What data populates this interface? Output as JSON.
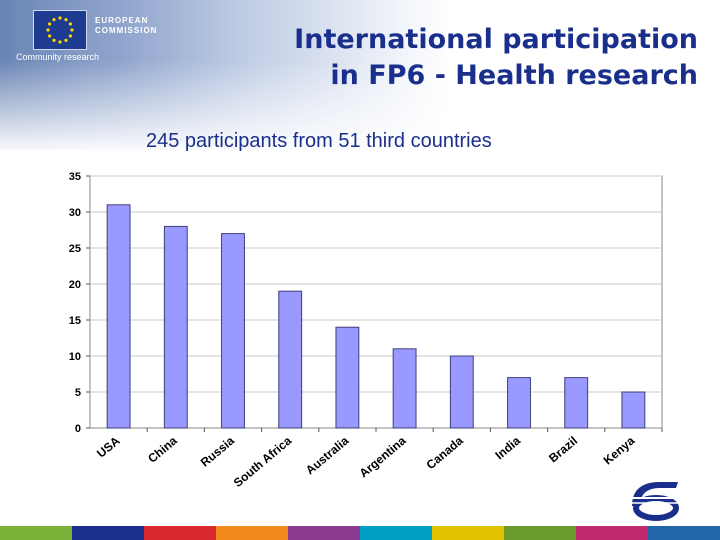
{
  "header": {
    "logo_line1": "EUROPEAN",
    "logo_line2": "COMMISSION",
    "community": "Community research",
    "title_line1": "International participation",
    "title_line2": "in FP6 - Health research"
  },
  "subtitle": "245 participants from 51 third countries",
  "colors": {
    "title": "#1a2f8c",
    "bar_fill": "#9999ff",
    "bar_stroke": "#3f3f7a",
    "footer": [
      "#7bb33a",
      "#1a2f8c",
      "#d9282f",
      "#f08a1c",
      "#8a3a8f",
      "#00a0c6",
      "#e1c300",
      "#6a9a2a",
      "#c22a6e",
      "#2266aa"
    ]
  },
  "chart_data": {
    "type": "bar",
    "categories": [
      "USA",
      "China",
      "Russia",
      "South Africa",
      "Australia",
      "Argentina",
      "Canada",
      "India",
      "Brazil",
      "Kenya"
    ],
    "values": [
      31,
      28,
      27,
      19,
      14,
      11,
      10,
      7,
      7,
      5
    ],
    "title": "",
    "xlabel": "",
    "ylabel": "",
    "ylim": [
      0,
      35
    ],
    "yticks": [
      0,
      5,
      10,
      15,
      20,
      25,
      30,
      35
    ],
    "grid": true,
    "legend": "none"
  }
}
